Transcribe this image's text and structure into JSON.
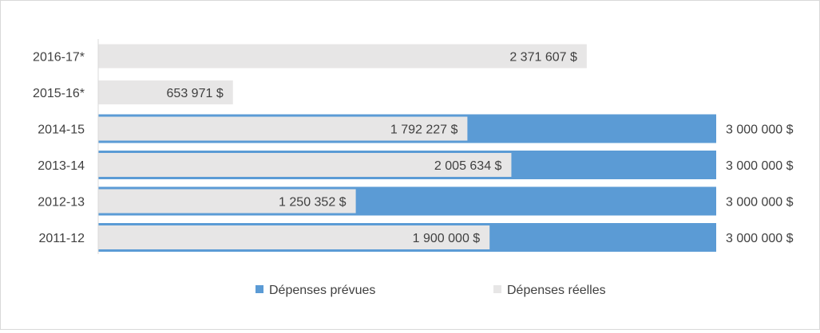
{
  "chart_data": {
    "type": "bar",
    "orientation": "horizontal",
    "title": "",
    "xlabel": "",
    "ylabel": "",
    "categories": [
      "2011-12",
      "2012-13",
      "2013-14",
      "2014-15",
      "2015-16*",
      "2016-17*"
    ],
    "xlim": [
      0,
      3000000
    ],
    "grid": false,
    "legend_position": "bottom",
    "series": [
      {
        "name": "Dépenses prévues",
        "color": "#5b9bd5",
        "values": [
          3000000,
          3000000,
          3000000,
          3000000,
          null,
          null
        ],
        "labels": [
          "3 000 000 $",
          "3 000 000 $",
          "3 000 000 $",
          "3 000 000 $",
          "",
          ""
        ]
      },
      {
        "name": "Dépenses réelles",
        "color": "#e7e6e6",
        "values": [
          1900000,
          1250352,
          2005634,
          1792227,
          653971,
          2371607
        ],
        "labels": [
          "1 900 000 $",
          "1 250 352 $",
          "2 005 634 $",
          "1 792 227 $",
          "653 971 $",
          "2 371 607 $"
        ]
      }
    ]
  },
  "colors": {
    "axis": "#d9d9d9",
    "text": "#404040"
  }
}
